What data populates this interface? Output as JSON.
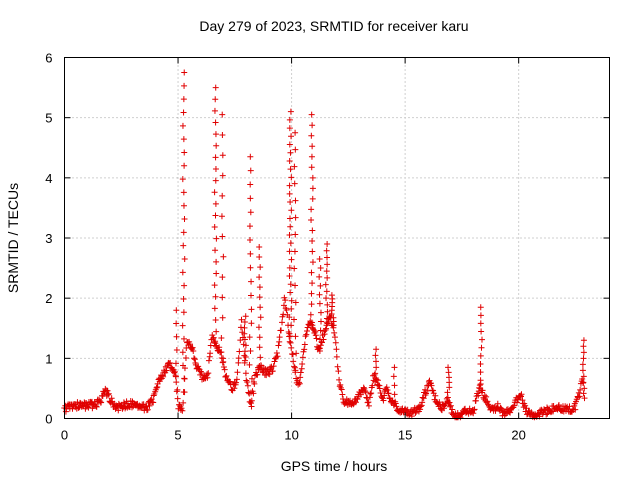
{
  "chart_data": {
    "type": "scatter",
    "title": "Day 279 of 2023, SRMTID for receiver karu",
    "xlabel": "GPS time / hours",
    "ylabel": "SRMTID / TECUs",
    "xlim": [
      0,
      24
    ],
    "ylim": [
      0,
      6
    ],
    "xticks": [
      0,
      5,
      10,
      15,
      20
    ],
    "yticks": [
      0,
      1,
      2,
      3,
      4,
      5,
      6
    ],
    "x_tick_labels": [
      "0",
      "5",
      "10",
      "15",
      "20"
    ],
    "y_tick_labels": [
      "0",
      "1",
      "2",
      "3",
      "4",
      "5",
      "6"
    ],
    "grid": true,
    "marker": "+",
    "series": [
      {
        "name": "SRMTID",
        "color": "#e00000",
        "base_curve": [
          [
            0.0,
            0.15
          ],
          [
            0.3,
            0.22
          ],
          [
            0.8,
            0.22
          ],
          [
            1.3,
            0.22
          ],
          [
            1.6,
            0.3
          ],
          [
            1.8,
            0.48
          ],
          [
            2.0,
            0.32
          ],
          [
            2.3,
            0.18
          ],
          [
            2.8,
            0.24
          ],
          [
            3.3,
            0.22
          ],
          [
            3.6,
            0.18
          ],
          [
            3.9,
            0.3
          ],
          [
            4.1,
            0.6
          ],
          [
            4.3,
            0.72
          ],
          [
            4.5,
            0.85
          ],
          [
            4.7,
            0.9
          ],
          [
            4.9,
            0.75
          ],
          [
            5.0,
            0.2
          ],
          [
            5.2,
            0.15
          ],
          [
            5.4,
            1.3
          ],
          [
            5.6,
            1.2
          ],
          [
            5.8,
            0.9
          ],
          [
            6.1,
            0.65
          ],
          [
            6.3,
            0.7
          ],
          [
            6.5,
            1.4
          ],
          [
            6.7,
            1.2
          ],
          [
            6.9,
            1.1
          ],
          [
            7.1,
            0.7
          ],
          [
            7.4,
            0.5
          ],
          [
            7.6,
            0.65
          ],
          [
            7.8,
            1.6
          ],
          [
            8.0,
            0.7
          ],
          [
            8.2,
            0.2
          ],
          [
            8.4,
            0.7
          ],
          [
            8.6,
            0.85
          ],
          [
            8.9,
            0.75
          ],
          [
            9.2,
            0.85
          ],
          [
            9.4,
            1.1
          ],
          [
            9.7,
            2.0
          ],
          [
            9.9,
            1.4
          ],
          [
            10.1,
            0.9
          ],
          [
            10.3,
            0.5
          ],
          [
            10.6,
            1.3
          ],
          [
            10.8,
            1.6
          ],
          [
            11.0,
            1.5
          ],
          [
            11.2,
            1.1
          ],
          [
            11.5,
            1.5
          ],
          [
            11.7,
            1.7
          ],
          [
            11.9,
            1.4
          ],
          [
            12.1,
            0.6
          ],
          [
            12.3,
            0.3
          ],
          [
            12.6,
            0.25
          ],
          [
            12.9,
            0.35
          ],
          [
            13.2,
            0.5
          ],
          [
            13.4,
            0.2
          ],
          [
            13.6,
            0.7
          ],
          [
            13.8,
            0.6
          ],
          [
            14.0,
            0.3
          ],
          [
            14.2,
            0.5
          ],
          [
            14.4,
            0.3
          ],
          [
            14.7,
            0.15
          ],
          [
            15.0,
            0.1
          ],
          [
            15.3,
            0.1
          ],
          [
            15.6,
            0.15
          ],
          [
            15.9,
            0.45
          ],
          [
            16.1,
            0.6
          ],
          [
            16.3,
            0.35
          ],
          [
            16.6,
            0.15
          ],
          [
            16.9,
            0.35
          ],
          [
            17.1,
            0.05
          ],
          [
            17.4,
            0.05
          ],
          [
            17.7,
            0.15
          ],
          [
            18.0,
            0.1
          ],
          [
            18.3,
            0.55
          ],
          [
            18.5,
            0.35
          ],
          [
            18.8,
            0.15
          ],
          [
            19.1,
            0.2
          ],
          [
            19.3,
            0.1
          ],
          [
            19.6,
            0.1
          ],
          [
            19.9,
            0.3
          ],
          [
            20.1,
            0.38
          ],
          [
            20.3,
            0.15
          ],
          [
            20.6,
            0.05
          ],
          [
            21.0,
            0.1
          ],
          [
            21.4,
            0.15
          ],
          [
            21.8,
            0.18
          ],
          [
            22.2,
            0.15
          ],
          [
            22.5,
            0.2
          ],
          [
            22.7,
            0.45
          ],
          [
            22.8,
            0.7
          ],
          [
            22.9,
            0.3
          ]
        ],
        "spikes": [
          {
            "x": 4.95,
            "peak": 1.8,
            "count": 6
          },
          {
            "x": 5.25,
            "peak": 5.75,
            "count": 24
          },
          {
            "x": 6.65,
            "peak": 5.5,
            "count": 22
          },
          {
            "x": 6.95,
            "peak": 5.05,
            "count": 12
          },
          {
            "x": 7.95,
            "peak": 1.7,
            "count": 8
          },
          {
            "x": 8.2,
            "peak": 4.35,
            "count": 18
          },
          {
            "x": 8.6,
            "peak": 2.85,
            "count": 12
          },
          {
            "x": 9.95,
            "peak": 5.1,
            "count": 28
          },
          {
            "x": 10.15,
            "peak": 4.75,
            "count": 14
          },
          {
            "x": 10.9,
            "peak": 5.05,
            "count": 20
          },
          {
            "x": 11.25,
            "peak": 2.65,
            "count": 10
          },
          {
            "x": 11.55,
            "peak": 2.9,
            "count": 12
          },
          {
            "x": 11.8,
            "peak": 2.05,
            "count": 8
          },
          {
            "x": 13.7,
            "peak": 1.15,
            "count": 5
          },
          {
            "x": 14.5,
            "peak": 0.85,
            "count": 4
          },
          {
            "x": 16.9,
            "peak": 0.85,
            "count": 6
          },
          {
            "x": 18.35,
            "peak": 1.85,
            "count": 10
          },
          {
            "x": 22.85,
            "peak": 1.3,
            "count": 8
          }
        ]
      }
    ]
  }
}
